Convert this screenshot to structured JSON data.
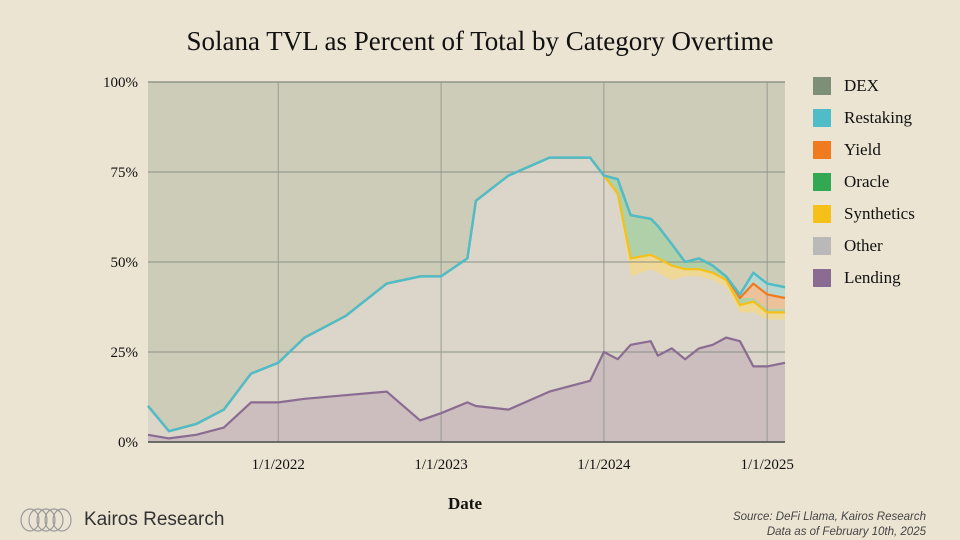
{
  "title": "Solana TVL as Percent of Total by Category Overtime",
  "brand": {
    "name": "Kairos Research",
    "logo_icon": "rings-logo-icon"
  },
  "source_lines": [
    "Source: DeFi Llama, Kairos Research",
    "Data as of February 10th, 2025"
  ],
  "chart_data": {
    "type": "area",
    "stacked": true,
    "title": "Solana TVL as Percent of Total by Category Overtime",
    "xlabel": "Date",
    "ylabel": "",
    "x_range": [
      "2021-03-15",
      "2025-02-10"
    ],
    "ylim": [
      0,
      100
    ],
    "y_ticks": [
      "0%",
      "25%",
      "50%",
      "75%",
      "100%"
    ],
    "x_ticks": [
      "1/1/2022",
      "1/1/2023",
      "1/1/2024",
      "1/1/2025"
    ],
    "legend_position": "right",
    "grid": true,
    "colors": {
      "DEX": "#7d8f76",
      "Restaking": "#4fbcc8",
      "Yield": "#f07a1e",
      "Oracle": "#33a852",
      "Synthetics": "#f5c017",
      "Other": "#b9b9b9",
      "Lending": "#8a6c92"
    },
    "legend": [
      "DEX",
      "Restaking",
      "Yield",
      "Oracle",
      "Synthetics",
      "Other",
      "Lending"
    ],
    "x": [
      "2021-03-15",
      "2021-05-01",
      "2021-07-01",
      "2021-09-01",
      "2021-11-01",
      "2022-01-01",
      "2022-03-01",
      "2022-06-01",
      "2022-09-01",
      "2022-11-15",
      "2023-01-01",
      "2023-03-01",
      "2023-03-20",
      "2023-06-01",
      "2023-09-01",
      "2023-12-01",
      "2024-01-01",
      "2024-02-01",
      "2024-03-01",
      "2024-04-15",
      "2024-05-01",
      "2024-06-01",
      "2024-07-01",
      "2024-08-01",
      "2024-09-01",
      "2024-10-01",
      "2024-11-01",
      "2024-12-01",
      "2025-01-01",
      "2025-02-10"
    ],
    "series": [
      {
        "name": "Lending",
        "values": [
          2,
          1,
          2,
          4,
          11,
          11,
          12,
          13,
          14,
          6,
          8,
          11,
          10,
          9,
          14,
          17,
          25,
          23,
          27,
          28,
          24,
          26,
          23,
          26,
          27,
          29,
          28,
          21,
          21,
          22
        ]
      },
      {
        "name": "Other",
        "values": [
          8,
          2,
          3,
          5,
          8,
          11,
          17,
          22,
          30,
          40,
          38,
          40,
          57,
          65,
          65,
          62,
          49,
          46,
          19,
          20,
          23,
          19,
          23,
          20,
          18,
          14,
          8,
          15,
          13,
          12
        ]
      },
      {
        "name": "Synthetics",
        "values": [
          0,
          0,
          0,
          0,
          0,
          0,
          0,
          0,
          0,
          0,
          0,
          0,
          0,
          0,
          0,
          0,
          0,
          0,
          5,
          4,
          4,
          4,
          2,
          2,
          2,
          2,
          2,
          3,
          2,
          2
        ]
      },
      {
        "name": "Oracle",
        "values": [
          0,
          0,
          0,
          0,
          0,
          0,
          0,
          0,
          0,
          0,
          0,
          0,
          0,
          0,
          0,
          0,
          0,
          4,
          12,
          10,
          9,
          6,
          2,
          3,
          2,
          1,
          2,
          1,
          1,
          1
        ]
      },
      {
        "name": "Yield",
        "values": [
          0,
          0,
          0,
          0,
          0,
          0,
          0,
          0,
          0,
          0,
          0,
          0,
          0,
          0,
          0,
          0,
          0,
          0,
          0,
          0,
          0,
          0,
          0,
          0,
          0,
          0,
          0,
          4,
          4,
          3
        ]
      },
      {
        "name": "Restaking",
        "values": [
          0,
          0,
          0,
          0,
          0,
          0,
          0,
          0,
          0,
          0,
          0,
          0,
          0,
          0,
          0,
          0,
          0,
          0,
          0,
          0,
          0,
          0,
          0,
          0,
          0,
          0,
          1,
          3,
          3,
          3
        ]
      },
      {
        "name": "DEX",
        "values": [
          90,
          97,
          95,
          91,
          81,
          78,
          71,
          65,
          56,
          54,
          54,
          49,
          33,
          26,
          21,
          21,
          26,
          27,
          37,
          38,
          40,
          45,
          50,
          49,
          51,
          54,
          59,
          53,
          56,
          57
        ]
      }
    ]
  }
}
